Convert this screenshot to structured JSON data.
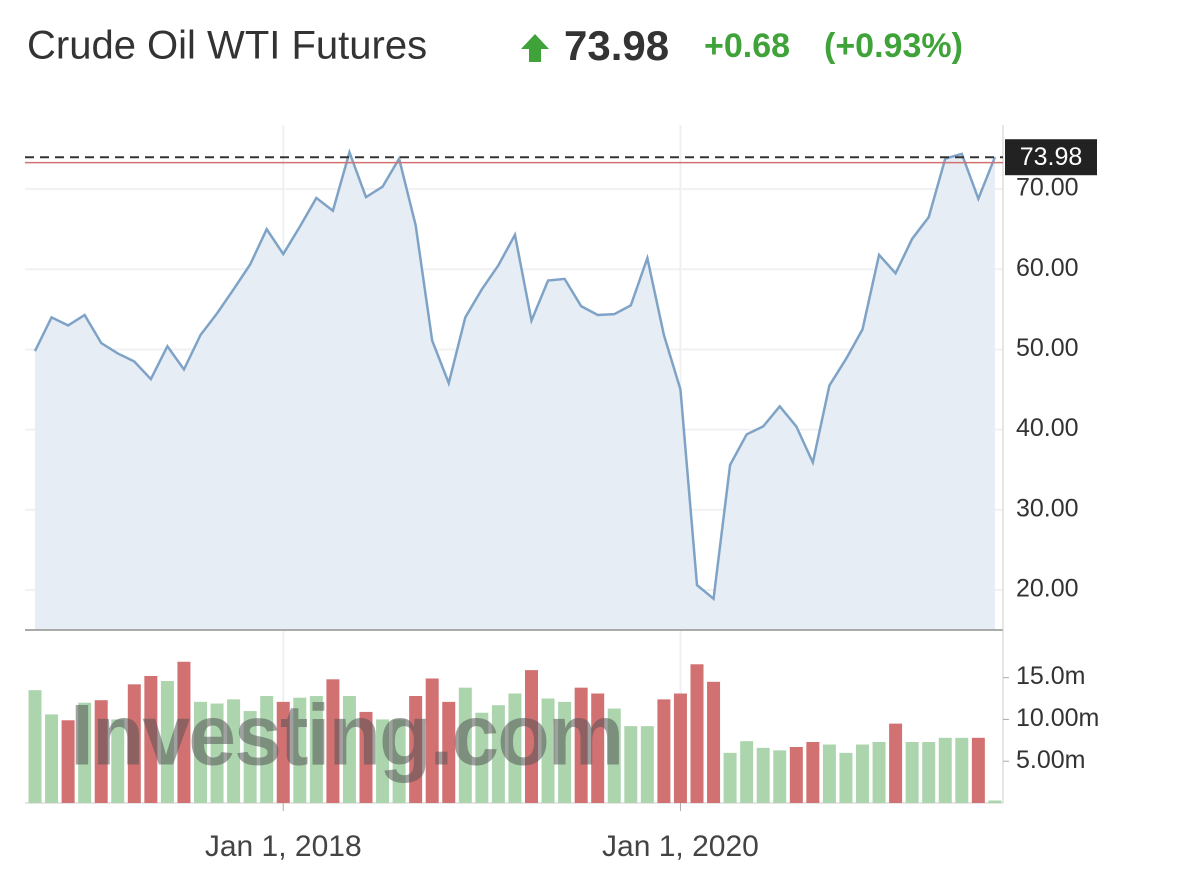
{
  "header": {
    "title": "Crude Oil WTI Futures",
    "price": "73.98",
    "change": "+0.68",
    "change_percent": "(+0.93%)"
  },
  "watermark": "Investing.com",
  "chart_data": [
    {
      "type": "area",
      "color": "#7fa3c6",
      "fill": "#e6edf5",
      "categories": [
        null,
        null,
        null,
        null,
        null,
        null,
        null,
        null,
        null,
        null,
        null,
        null,
        null,
        null,
        null,
        "Jan 1, 2018",
        null,
        null,
        null,
        null,
        null,
        null,
        null,
        null,
        null,
        null,
        null,
        null,
        null,
        null,
        null,
        null,
        null,
        null,
        null,
        null,
        null,
        null,
        null,
        "Jan 1, 2020",
        null,
        null,
        null,
        null,
        null,
        null,
        null,
        null,
        null,
        null,
        null,
        null,
        null,
        null,
        null,
        null,
        null,
        null,
        null
      ],
      "values": [
        49.8,
        54,
        53,
        54.3,
        50.8,
        49.5,
        48.5,
        46.3,
        50.4,
        47.5,
        51.8,
        54.5,
        57.5,
        60.6,
        65,
        61.9,
        65.3,
        68.9,
        67.3,
        74.6,
        69,
        70.3,
        73.8,
        65.5,
        51.1,
        45.8,
        54,
        57.5,
        60.5,
        64.3,
        53.6,
        58.6,
        58.8,
        55.4,
        54.3,
        54.4,
        55.5,
        61.4,
        51.8,
        45,
        20.6,
        18.9,
        35.6,
        39.4,
        40.4,
        42.9,
        40.4,
        35.9,
        45.5,
        48.8,
        52.5,
        61.8,
        59.5,
        63.8,
        66.5,
        73.8,
        74.4,
        68.8,
        73.98
      ],
      "ylim": [
        15,
        78
      ],
      "yticks": [
        {
          "value": 20,
          "label": "20.00"
        },
        {
          "value": 30,
          "label": "30.00"
        },
        {
          "value": 40,
          "label": "40.00"
        },
        {
          "value": 50,
          "label": "50.00"
        },
        {
          "value": 60,
          "label": "60.00"
        },
        {
          "value": 70,
          "label": "70.00"
        }
      ],
      "last": {
        "value": 73.98,
        "label": "73.98"
      },
      "previous_close": 73.3,
      "grid": true
    },
    {
      "type": "bar",
      "values": [
        13.5,
        10.6,
        9.9,
        12,
        12.3,
        10,
        14.2,
        15.2,
        14.6,
        16.9,
        12.1,
        11.9,
        12.4,
        11,
        12.8,
        12.1,
        12.6,
        12.8,
        14.8,
        12.8,
        10.9,
        10,
        10,
        12.8,
        14.9,
        12.1,
        13.8,
        10.8,
        11.7,
        13.1,
        15.9,
        12.5,
        12.1,
        13.8,
        13.1,
        11.3,
        9.2,
        9.2,
        12.4,
        13.1,
        16.6,
        14.5,
        6,
        7.4,
        6.6,
        6.3,
        6.7,
        7.3,
        7,
        6,
        7,
        7.3,
        9.5,
        7.3,
        7.3,
        7.8,
        7.8,
        7.8,
        0.3
      ],
      "colors": [
        "#acd5ae",
        "#acd5ae",
        "#d27171",
        "#acd5ae",
        "#d27171",
        "#acd5ae",
        "#d27171",
        "#d27171",
        "#acd5ae",
        "#d27171",
        "#acd5ae",
        "#acd5ae",
        "#acd5ae",
        "#acd5ae",
        "#acd5ae",
        "#d27171",
        "#acd5ae",
        "#acd5ae",
        "#d27171",
        "#acd5ae",
        "#d27171",
        "#acd5ae",
        "#acd5ae",
        "#d27171",
        "#d27171",
        "#d27171",
        "#acd5ae",
        "#acd5ae",
        "#acd5ae",
        "#acd5ae",
        "#d27171",
        "#acd5ae",
        "#acd5ae",
        "#d27171",
        "#d27171",
        "#acd5ae",
        "#acd5ae",
        "#acd5ae",
        "#d27171",
        "#d27171",
        "#d27171",
        "#d27171",
        "#acd5ae",
        "#acd5ae",
        "#acd5ae",
        "#acd5ae",
        "#d27171",
        "#d27171",
        "#acd5ae",
        "#acd5ae",
        "#acd5ae",
        "#acd5ae",
        "#d27171",
        "#acd5ae",
        "#acd5ae",
        "#acd5ae",
        "#acd5ae",
        "#d27171",
        "#acd5ae"
      ],
      "ylim": [
        0,
        20.7
      ],
      "yticks": [
        {
          "value": 5,
          "label": "5.00m"
        },
        {
          "value": 10,
          "label": "10.00m"
        },
        {
          "value": 15,
          "label": "15.0m"
        }
      ]
    }
  ]
}
